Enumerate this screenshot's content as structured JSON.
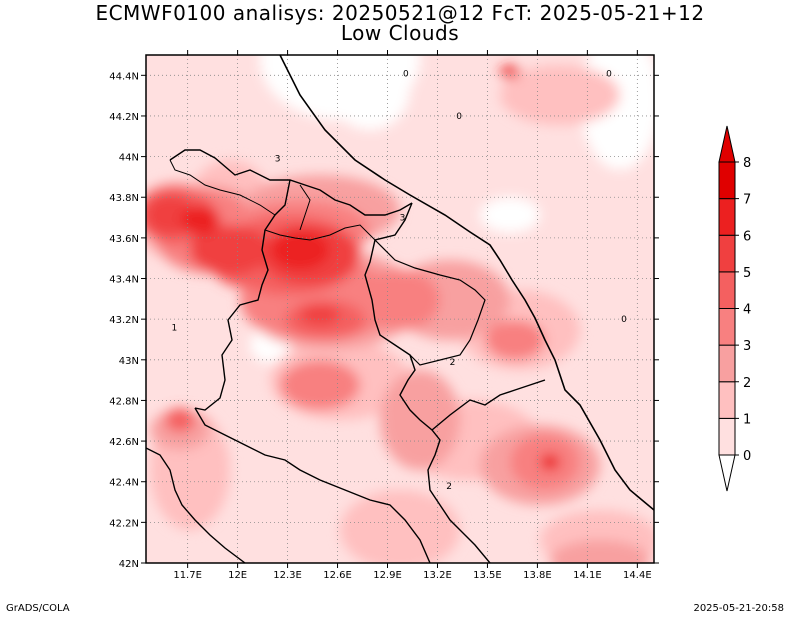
{
  "title": {
    "line1": "ECMWF0100 analisys: 20250521@12 FcT: 2025-05-21+12",
    "line2": "Low Clouds"
  },
  "map": {
    "lon_range": [
      11.45,
      14.5
    ],
    "lat_range": [
      42.0,
      44.5
    ],
    "x_ticks": [
      {
        "value": 11.7,
        "label": "11.7E"
      },
      {
        "value": 12.0,
        "label": "12E"
      },
      {
        "value": 12.3,
        "label": "12.3E"
      },
      {
        "value": 12.6,
        "label": "12.6E"
      },
      {
        "value": 12.9,
        "label": "12.9E"
      },
      {
        "value": 13.2,
        "label": "13.2E"
      },
      {
        "value": 13.5,
        "label": "13.5E"
      },
      {
        "value": 13.8,
        "label": "13.8E"
      },
      {
        "value": 14.1,
        "label": "14.1E"
      },
      {
        "value": 14.4,
        "label": "14.4E"
      }
    ],
    "y_ticks": [
      {
        "value": 42.0,
        "label": "42N"
      },
      {
        "value": 42.2,
        "label": "42.2N"
      },
      {
        "value": 42.4,
        "label": "42.4N"
      },
      {
        "value": 42.6,
        "label": "42.6N"
      },
      {
        "value": 42.8,
        "label": "42.8N"
      },
      {
        "value": 43.0,
        "label": "43N"
      },
      {
        "value": 43.2,
        "label": "43.2N"
      },
      {
        "value": 43.4,
        "label": "43.4N"
      },
      {
        "value": 43.6,
        "label": "43.6N"
      },
      {
        "value": 43.8,
        "label": "43.8N"
      },
      {
        "value": 44.0,
        "label": "44N"
      },
      {
        "value": 44.2,
        "label": "44.2N"
      },
      {
        "value": 44.4,
        "label": "44.4N"
      }
    ],
    "grid": "dotted",
    "contour_labels": [
      {
        "lon": 13.01,
        "lat": 44.41,
        "text": "0"
      },
      {
        "lon": 13.33,
        "lat": 44.2,
        "text": "0"
      },
      {
        "lon": 14.23,
        "lat": 44.41,
        "text": "0"
      },
      {
        "lon": 14.32,
        "lat": 43.2,
        "text": "0"
      },
      {
        "lon": 12.24,
        "lat": 43.99,
        "text": "3"
      },
      {
        "lon": 12.99,
        "lat": 43.7,
        "text": "3"
      },
      {
        "lon": 11.62,
        "lat": 43.16,
        "text": "1"
      },
      {
        "lon": 13.29,
        "lat": 42.99,
        "text": "2"
      },
      {
        "lon": 13.27,
        "lat": 42.38,
        "text": "2"
      }
    ]
  },
  "colorbar": {
    "levels": [
      "0",
      "1",
      "2",
      "3",
      "4",
      "5",
      "6",
      "7",
      "8"
    ],
    "colors": [
      "#ffffff",
      "#ffe0e0",
      "#ffc0c0",
      "#f8a0a0",
      "#f88080",
      "#f46060",
      "#f04040",
      "#ec2020",
      "#e00000"
    ]
  },
  "footer": {
    "left": "GrADS/COLA",
    "right": "2025-05-21-20:58"
  }
}
